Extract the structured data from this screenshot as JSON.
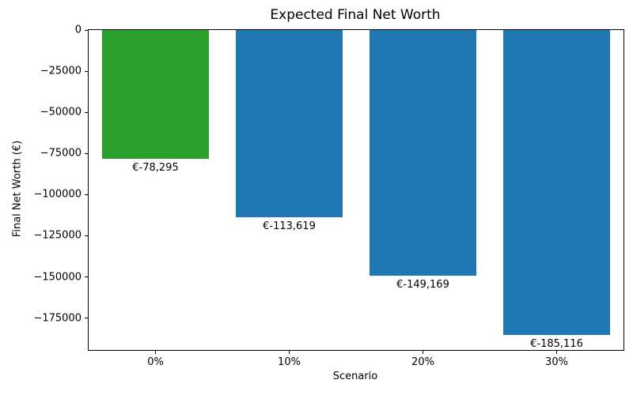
{
  "chart_data": {
    "type": "bar",
    "title": "Expected Final Net Worth",
    "xlabel": "Scenario",
    "ylabel": "Final Net Worth (€)",
    "categories": [
      "0%",
      "10%",
      "20%",
      "30%"
    ],
    "values": [
      -78295,
      -113619,
      -149169,
      -185116
    ],
    "bar_labels": [
      "€-78,295",
      "€-113,619",
      "€-149,169",
      "€-185,116"
    ],
    "bar_colors": [
      "#2ca02c",
      "#1f77b4",
      "#1f77b4",
      "#1f77b4"
    ],
    "ylim": [
      -194372,
      0
    ],
    "yticks": [
      0,
      -25000,
      -50000,
      -75000,
      -100000,
      -125000,
      -150000,
      -175000
    ],
    "ytick_labels": [
      "0",
      "−25000",
      "−50000",
      "−75000",
      "−100000",
      "−125000",
      "−150000",
      "−175000"
    ],
    "bar_width_fraction": 0.8,
    "grid": false,
    "legend": null,
    "background_color": "#ffffff",
    "text_color": "#000000",
    "spine_color": "#000000"
  }
}
